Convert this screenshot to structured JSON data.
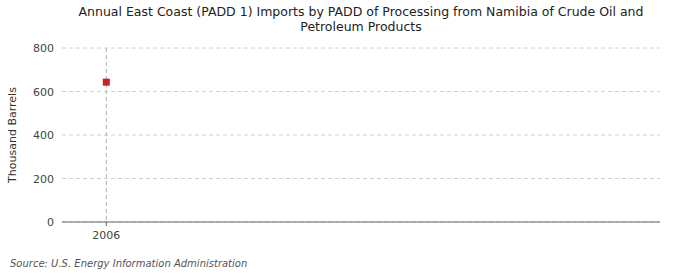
{
  "chart_data": {
    "type": "scatter",
    "title": "Annual East Coast (PADD 1) Imports by PADD of Processing from Namibia of Crude Oil and\nPetroleum Products",
    "ylabel": "Thousand Barrels",
    "x": [
      2006
    ],
    "values": [
      643
    ],
    "color": "#cc2222",
    "marker": "square",
    "xlim": [
      2005.4,
      2013.5
    ],
    "xticks": [
      2006
    ],
    "ylim": [
      0,
      800
    ],
    "yticks": [
      0,
      200,
      400,
      600,
      800
    ],
    "grid": true,
    "annotations": [
      "Source: U.S. Energy Information Administration"
    ]
  }
}
